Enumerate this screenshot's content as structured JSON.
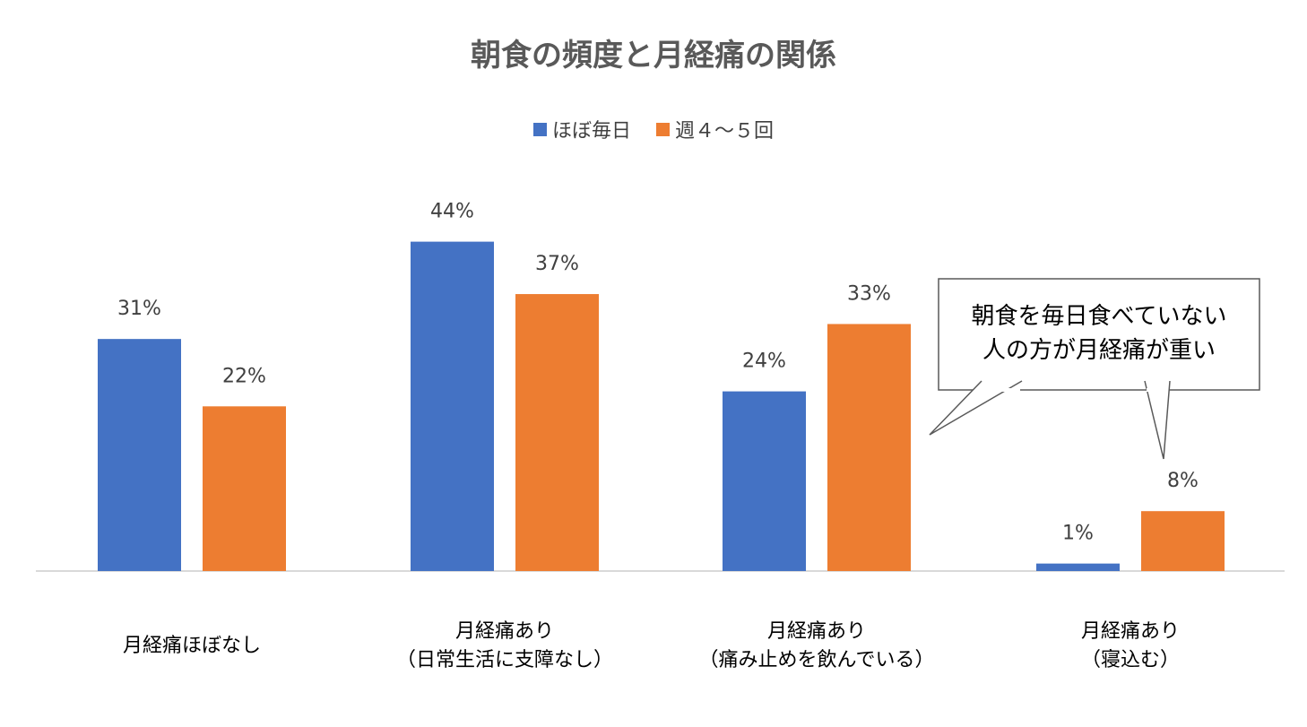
{
  "chart_data": {
    "type": "bar",
    "title": "朝食の頻度と月経痛の関係",
    "categories": [
      "月経痛ほぼなし",
      "月経痛あり\n（日常生活に支障なし）",
      "月経痛あり\n（痛み止めを飲んでいる）",
      "月経痛あり\n（寝込む）"
    ],
    "series": [
      {
        "name": "ほぼ毎日",
        "values": [
          31,
          44,
          24,
          1
        ],
        "labels": [
          "31%",
          "44%",
          "24%",
          "1%"
        ],
        "color": "#4472C4"
      },
      {
        "name": "週４～５回",
        "values": [
          22,
          37,
          33,
          8
        ],
        "labels": [
          "22%",
          "37%",
          "33%",
          "8%"
        ],
        "color": "#ED7D31"
      }
    ],
    "unit": "%",
    "ylim": [
      0,
      50
    ],
    "grid": false,
    "legend_position": "top",
    "annotation": "朝食を毎日食べていない\n人の方が月経痛が重い"
  }
}
